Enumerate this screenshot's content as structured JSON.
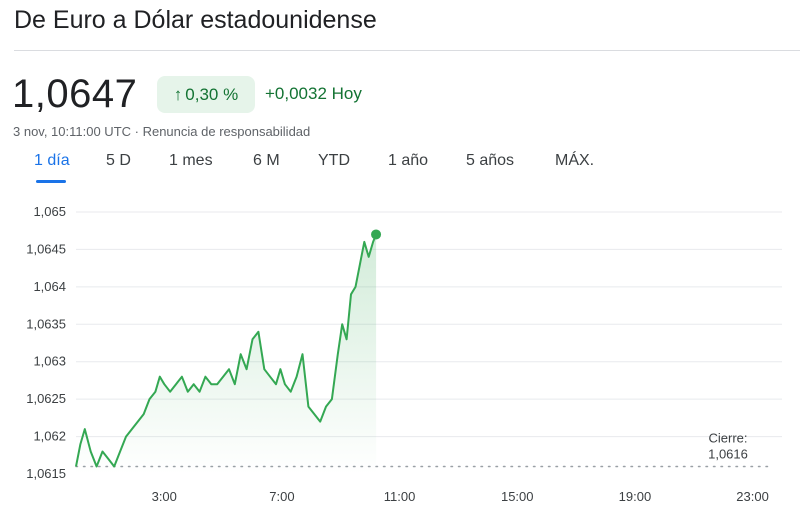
{
  "header": {
    "title": "De Euro a Dólar estadounidense"
  },
  "quote": {
    "price": "1,0647",
    "change_arrow": "↑",
    "change_percent": "0,30 %",
    "change_absolute": "+0,0032 Hoy",
    "timestamp": "3 nov, 10:11:00 UTC · Renuncia de responsabilidad"
  },
  "tabs": [
    {
      "label": "1 día",
      "active": true
    },
    {
      "label": "5 D",
      "active": false
    },
    {
      "label": "1 mes",
      "active": false
    },
    {
      "label": "6 M",
      "active": false
    },
    {
      "label": "YTD",
      "active": false
    },
    {
      "label": "1 año",
      "active": false
    },
    {
      "label": "5 años",
      "active": false
    },
    {
      "label": "MÁX.",
      "active": false
    }
  ],
  "colors": {
    "line": "#34a853",
    "positive_text": "#137333",
    "positive_bg": "#e6f4ea",
    "accent": "#1a73e8"
  },
  "chart_data": {
    "type": "line",
    "x_unit": "hours (UTC)",
    "xlim": [
      0,
      24
    ],
    "ylim": [
      1.0615,
      1.065
    ],
    "y_ticks": [
      1.0615,
      1.062,
      1.0625,
      1.063,
      1.0635,
      1.064,
      1.0645,
      1.065
    ],
    "y_tick_labels": [
      "1,0615",
      "1,062",
      "1,0625",
      "1,063",
      "1,0635",
      "1,064",
      "1,0645",
      "1,065"
    ],
    "x_ticks": [
      3,
      7,
      11,
      15,
      19,
      23
    ],
    "x_tick_labels": [
      "3:00",
      "7:00",
      "11:00",
      "15:00",
      "19:00",
      "23:00"
    ],
    "grid": true,
    "previous_close": 1.0616,
    "previous_close_label": "Cierre:",
    "previous_close_value": "1,0616",
    "series": [
      {
        "x": [
          0,
          0.15,
          0.3,
          0.5,
          0.7,
          0.9,
          1.1,
          1.3,
          1.5,
          1.7,
          1.9,
          2.1,
          2.3,
          2.5,
          2.7,
          2.85,
          3.0,
          3.2,
          3.4,
          3.6,
          3.8,
          4.0,
          4.2,
          4.4,
          4.6,
          4.8,
          5.0,
          5.2,
          5.4,
          5.6,
          5.8,
          6.0,
          6.2,
          6.4,
          6.6,
          6.8,
          6.95,
          7.1,
          7.3,
          7.5,
          7.7,
          7.9,
          8.1,
          8.3,
          8.5,
          8.7,
          8.9,
          9.05,
          9.2,
          9.35,
          9.5,
          9.65,
          9.8,
          9.95,
          10.1,
          10.2
        ],
        "y": [
          1.0616,
          1.0619,
          1.0621,
          1.0618,
          1.0616,
          1.0618,
          1.0617,
          1.0616,
          1.0618,
          1.062,
          1.0621,
          1.0622,
          1.0623,
          1.0625,
          1.0626,
          1.0628,
          1.0627,
          1.0626,
          1.0627,
          1.0628,
          1.0626,
          1.0627,
          1.0626,
          1.0628,
          1.0627,
          1.0627,
          1.0628,
          1.0629,
          1.0627,
          1.0631,
          1.0629,
          1.0633,
          1.0634,
          1.0629,
          1.0628,
          1.0627,
          1.0629,
          1.0627,
          1.0626,
          1.0628,
          1.0631,
          1.0624,
          1.0623,
          1.0622,
          1.0624,
          1.0625,
          1.0631,
          1.0635,
          1.0633,
          1.0639,
          1.064,
          1.0643,
          1.0646,
          1.0644,
          1.0646,
          1.0647
        ]
      }
    ]
  }
}
